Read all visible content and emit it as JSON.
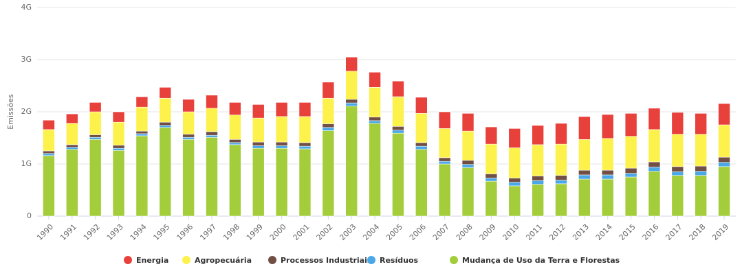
{
  "chart_data": {
    "type": "stacked-bar",
    "y_label": "Emissões",
    "categories": [
      "1990",
      "1991",
      "1992",
      "1993",
      "1994",
      "1995",
      "1996",
      "1997",
      "1998",
      "1999",
      "2000",
      "2001",
      "2002",
      "2003",
      "2004",
      "2005",
      "2006",
      "2007",
      "2008",
      "2009",
      "2010",
      "2011",
      "2012",
      "2013",
      "2014",
      "2015",
      "2016",
      "2017",
      "2018",
      "2019"
    ],
    "series": [
      {
        "name": "Energia",
        "color": "#e8403a",
        "values": [
          0.18,
          0.18,
          0.18,
          0.2,
          0.2,
          0.21,
          0.24,
          0.25,
          0.24,
          0.26,
          0.27,
          0.27,
          0.31,
          0.27,
          0.29,
          0.3,
          0.31,
          0.32,
          0.34,
          0.33,
          0.37,
          0.37,
          0.4,
          0.44,
          0.46,
          0.44,
          0.41,
          0.42,
          0.4,
          0.41
        ]
      },
      {
        "name": "Agropecuária",
        "color": "#fdf14b",
        "values": [
          0.41,
          0.41,
          0.44,
          0.44,
          0.46,
          0.46,
          0.43,
          0.45,
          0.47,
          0.46,
          0.49,
          0.5,
          0.49,
          0.54,
          0.57,
          0.57,
          0.56,
          0.56,
          0.56,
          0.57,
          0.58,
          0.6,
          0.6,
          0.59,
          0.61,
          0.61,
          0.62,
          0.62,
          0.61,
          0.62
        ]
      },
      {
        "name": "Processos Industriais",
        "color": "#714f44",
        "values": [
          0.05,
          0.05,
          0.05,
          0.06,
          0.05,
          0.06,
          0.06,
          0.07,
          0.06,
          0.07,
          0.07,
          0.07,
          0.07,
          0.07,
          0.07,
          0.07,
          0.07,
          0.07,
          0.08,
          0.08,
          0.08,
          0.09,
          0.09,
          0.09,
          0.09,
          0.1,
          0.1,
          0.1,
          0.1,
          0.1
        ]
      },
      {
        "name": "Resíduos",
        "color": "#4aa8e8",
        "values": [
          0.04,
          0.04,
          0.04,
          0.04,
          0.04,
          0.04,
          0.04,
          0.04,
          0.04,
          0.05,
          0.05,
          0.05,
          0.06,
          0.06,
          0.05,
          0.06,
          0.06,
          0.05,
          0.06,
          0.06,
          0.07,
          0.07,
          0.07,
          0.08,
          0.08,
          0.07,
          0.08,
          0.07,
          0.08,
          0.08
        ]
      },
      {
        "name": "Mudança de Uso da Terra e Florestas",
        "color": "#a3cd3a",
        "values": [
          1.16,
          1.28,
          1.47,
          1.26,
          1.54,
          1.7,
          1.47,
          1.51,
          1.37,
          1.3,
          1.3,
          1.29,
          1.64,
          2.11,
          1.78,
          1.59,
          1.28,
          1.0,
          0.93,
          0.67,
          0.58,
          0.61,
          0.62,
          0.71,
          0.71,
          0.75,
          0.86,
          0.78,
          0.78,
          0.95
        ]
      }
    ],
    "ylim": [
      0,
      4
    ],
    "yticks": [
      0,
      {
        "value": 1,
        "label": "1G"
      },
      {
        "value": 2,
        "label": "2G"
      },
      {
        "value": 3,
        "label": "3G"
      },
      {
        "value": 4,
        "label": "4G"
      }
    ],
    "grid": true
  }
}
